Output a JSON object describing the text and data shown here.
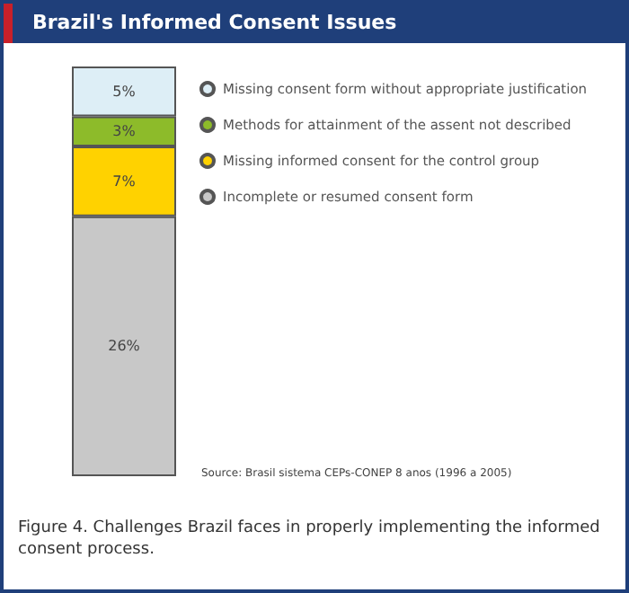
{
  "chart_data": {
    "type": "bar",
    "title": "Brazil's Informed Consent Issues",
    "categories": [
      null
    ],
    "stacked": true,
    "legend": "right",
    "series": [
      {
        "name": "Incomplete or resumed consent form",
        "color": "#c8c8c8",
        "values": [
          26
        ],
        "value_labels": [
          "26%"
        ]
      },
      {
        "name": "Missing informed consent for the control group",
        "color": "#ffd200",
        "values": [
          7
        ],
        "value_labels": [
          "7%"
        ]
      },
      {
        "name": "Methods for attainment of the assent not described",
        "color": "#8dbb2a",
        "values": [
          3
        ],
        "value_labels": [
          "3%"
        ]
      },
      {
        "name": "Missing consent form without appropriate justification",
        "color": "#ddeef6",
        "values": [
          5
        ],
        "value_labels": [
          "5%"
        ]
      }
    ],
    "annotations": [
      "Source: Brasil sistema CEPs-CONEP 8 anos (1996 a 2005)",
      "Figure 4. Challenges Brazil faces in properly implementing the informed consent process."
    ]
  }
}
